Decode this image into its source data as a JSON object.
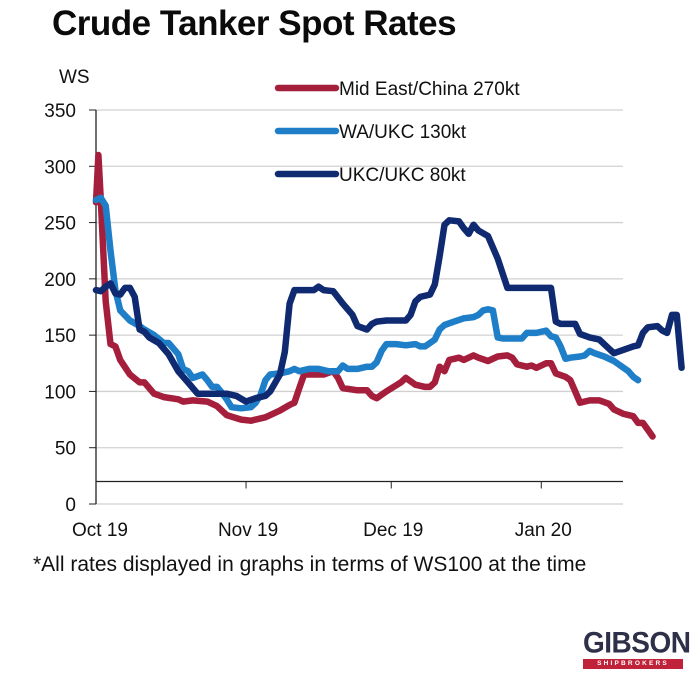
{
  "page": {
    "title": "Crude Tanker Spot Rates",
    "footnote": "*All rates displayed in graphs in terms of WS100 at the time",
    "logo": {
      "name": "GIBSON",
      "tagline": "SHIPBROKERS",
      "tagline_color": "#c0223a",
      "name_color": "#2e2f48"
    }
  },
  "chart_data": {
    "type": "line",
    "title": "Crude Tanker Spot Rates",
    "xlabel": "",
    "ylabel": "WS",
    "ylim": [
      0,
      350
    ],
    "yticks": [
      0,
      50,
      100,
      150,
      200,
      250,
      300,
      350
    ],
    "grid": true,
    "legend_position": "top-right",
    "x_unit": "days since 1 Oct 2019",
    "xlim": [
      0,
      112
    ],
    "xticks": [
      {
        "label": "Oct 19",
        "day": 0
      },
      {
        "label": "Nov 19",
        "day": 31
      },
      {
        "label": "Dec 19",
        "day": 61
      },
      {
        "label": "Jan 20",
        "day": 92
      }
    ],
    "x_axis_line_value": 20,
    "series": [
      {
        "name": "Mid East/China 270kt",
        "color": "#a51f3c",
        "points": [
          [
            0,
            268
          ],
          [
            0.5,
            310
          ],
          [
            1,
            270
          ],
          [
            2,
            180
          ],
          [
            3,
            142
          ],
          [
            4,
            140
          ],
          [
            5,
            128
          ],
          [
            7,
            115
          ],
          [
            9,
            108
          ],
          [
            10,
            108
          ],
          [
            12,
            98
          ],
          [
            14,
            95
          ],
          [
            17,
            93
          ],
          [
            18,
            91
          ],
          [
            20,
            92
          ],
          [
            23,
            91
          ],
          [
            25,
            87
          ],
          [
            27,
            79
          ],
          [
            30,
            75
          ],
          [
            32,
            74
          ],
          [
            35,
            77
          ],
          [
            38,
            83
          ],
          [
            40,
            88
          ],
          [
            41,
            90
          ],
          [
            42,
            103
          ],
          [
            43,
            115
          ],
          [
            45,
            115
          ],
          [
            47,
            115
          ],
          [
            49,
            118
          ],
          [
            50,
            112
          ],
          [
            51,
            103
          ],
          [
            54,
            101
          ],
          [
            56,
            101
          ],
          [
            57,
            96
          ],
          [
            58,
            94
          ],
          [
            60,
            100
          ],
          [
            63,
            108
          ],
          [
            64,
            112
          ],
          [
            66,
            106
          ],
          [
            68,
            104
          ],
          [
            69,
            104
          ],
          [
            70,
            108
          ],
          [
            71,
            122
          ],
          [
            72,
            118
          ],
          [
            73,
            128
          ],
          [
            75,
            130
          ],
          [
            76,
            128
          ],
          [
            78,
            132
          ],
          [
            79,
            130
          ],
          [
            81,
            127
          ],
          [
            83,
            131
          ],
          [
            85,
            132
          ],
          [
            86,
            130
          ],
          [
            87,
            124
          ],
          [
            89,
            122
          ],
          [
            90,
            123
          ],
          [
            91,
            121
          ],
          [
            93,
            125
          ],
          [
            94,
            125
          ],
          [
            95,
            116
          ],
          [
            97,
            113
          ],
          [
            98,
            110
          ],
          [
            99,
            100
          ],
          [
            100,
            90
          ],
          [
            102,
            92
          ],
          [
            104,
            92
          ],
          [
            106,
            89
          ],
          [
            107,
            84
          ],
          [
            109,
            80
          ],
          [
            111,
            78
          ],
          [
            112,
            72
          ],
          [
            113,
            72
          ],
          [
            114,
            66
          ],
          [
            115,
            60
          ]
        ]
      },
      {
        "name": "WA/UKC 130kt",
        "color": "#1e7fc8",
        "points": [
          [
            0,
            270
          ],
          [
            1,
            272
          ],
          [
            2,
            265
          ],
          [
            3,
            225
          ],
          [
            4,
            190
          ],
          [
            5,
            172
          ],
          [
            7,
            163
          ],
          [
            9,
            158
          ],
          [
            10,
            155
          ],
          [
            12,
            150
          ],
          [
            14,
            143
          ],
          [
            15,
            143
          ],
          [
            17,
            133
          ],
          [
            18,
            120
          ],
          [
            19,
            118
          ],
          [
            20,
            112
          ],
          [
            22,
            115
          ],
          [
            23,
            110
          ],
          [
            24,
            104
          ],
          [
            25,
            104
          ],
          [
            26,
            99
          ],
          [
            27,
            93
          ],
          [
            28,
            86
          ],
          [
            30,
            85
          ],
          [
            32,
            86
          ],
          [
            33,
            90
          ],
          [
            34,
            97
          ],
          [
            35,
            110
          ],
          [
            36,
            115
          ],
          [
            38,
            116
          ],
          [
            40,
            118
          ],
          [
            41,
            120
          ],
          [
            42,
            118
          ],
          [
            44,
            120
          ],
          [
            46,
            120
          ],
          [
            48,
            118
          ],
          [
            50,
            118
          ],
          [
            51,
            123
          ],
          [
            52,
            120
          ],
          [
            54,
            120
          ],
          [
            56,
            122
          ],
          [
            57,
            122
          ],
          [
            58,
            126
          ],
          [
            59,
            136
          ],
          [
            60,
            142
          ],
          [
            62,
            142
          ],
          [
            64,
            141
          ],
          [
            66,
            142
          ],
          [
            67,
            140
          ],
          [
            68,
            140
          ],
          [
            70,
            146
          ],
          [
            71,
            155
          ],
          [
            72,
            159
          ],
          [
            74,
            162
          ],
          [
            76,
            165
          ],
          [
            78,
            166
          ],
          [
            79,
            168
          ],
          [
            80,
            172
          ],
          [
            81,
            173
          ],
          [
            82,
            172
          ],
          [
            83,
            148
          ],
          [
            84,
            147
          ],
          [
            86,
            147
          ],
          [
            88,
            147
          ],
          [
            89,
            152
          ],
          [
            91,
            152
          ],
          [
            93,
            154
          ],
          [
            94,
            149
          ],
          [
            95,
            148
          ],
          [
            96,
            140
          ],
          [
            97,
            129
          ],
          [
            98,
            130
          ],
          [
            100,
            131
          ],
          [
            101,
            132
          ],
          [
            102,
            136
          ],
          [
            103,
            134
          ],
          [
            105,
            131
          ],
          [
            107,
            127
          ],
          [
            108,
            124
          ],
          [
            109,
            121
          ],
          [
            110,
            118
          ],
          [
            111,
            113
          ],
          [
            112,
            110
          ]
        ]
      },
      {
        "name": "UKC/UKC 80kt",
        "color": "#0f2a70",
        "points": [
          [
            0,
            190
          ],
          [
            1,
            189
          ],
          [
            2,
            193
          ],
          [
            3,
            196
          ],
          [
            4,
            187
          ],
          [
            5,
            186
          ],
          [
            6,
            192
          ],
          [
            7,
            192
          ],
          [
            8,
            184
          ],
          [
            9,
            155
          ],
          [
            10,
            153
          ],
          [
            11,
            148
          ],
          [
            13,
            143
          ],
          [
            15,
            133
          ],
          [
            17,
            118
          ],
          [
            19,
            108
          ],
          [
            21,
            98
          ],
          [
            23,
            98
          ],
          [
            25,
            98
          ],
          [
            27,
            98
          ],
          [
            29,
            96
          ],
          [
            31,
            91
          ],
          [
            33,
            94
          ],
          [
            35,
            96
          ],
          [
            36,
            100
          ],
          [
            38,
            115
          ],
          [
            39,
            135
          ],
          [
            40,
            178
          ],
          [
            41,
            190
          ],
          [
            43,
            190
          ],
          [
            45,
            190
          ],
          [
            46,
            193
          ],
          [
            47,
            190
          ],
          [
            49,
            189
          ],
          [
            51,
            178
          ],
          [
            53,
            168
          ],
          [
            54,
            158
          ],
          [
            56,
            155
          ],
          [
            57,
            160
          ],
          [
            58,
            162
          ],
          [
            60,
            163
          ],
          [
            62,
            163
          ],
          [
            64,
            163
          ],
          [
            65,
            168
          ],
          [
            66,
            180
          ],
          [
            67,
            184
          ],
          [
            69,
            186
          ],
          [
            70,
            195
          ],
          [
            71,
            220
          ],
          [
            72,
            248
          ],
          [
            73,
            252
          ],
          [
            75,
            251
          ],
          [
            76,
            245
          ],
          [
            77,
            240
          ],
          [
            78,
            248
          ],
          [
            79,
            243
          ],
          [
            81,
            238
          ],
          [
            83,
            218
          ],
          [
            85,
            192
          ],
          [
            87,
            192
          ],
          [
            89,
            192
          ],
          [
            91,
            192
          ],
          [
            93,
            192
          ],
          [
            94,
            192
          ],
          [
            95,
            162
          ],
          [
            96,
            160
          ],
          [
            98,
            160
          ],
          [
            99,
            160
          ],
          [
            100,
            151
          ],
          [
            102,
            148
          ],
          [
            104,
            146
          ],
          [
            106,
            138
          ],
          [
            107,
            134
          ],
          [
            109,
            137
          ],
          [
            111,
            140
          ],
          [
            112,
            141
          ],
          [
            113,
            152
          ],
          [
            114,
            157
          ],
          [
            116,
            158
          ],
          [
            117,
            154
          ],
          [
            118,
            152
          ],
          [
            119,
            168
          ],
          [
            120,
            168
          ],
          [
            121,
            121
          ]
        ]
      }
    ]
  }
}
